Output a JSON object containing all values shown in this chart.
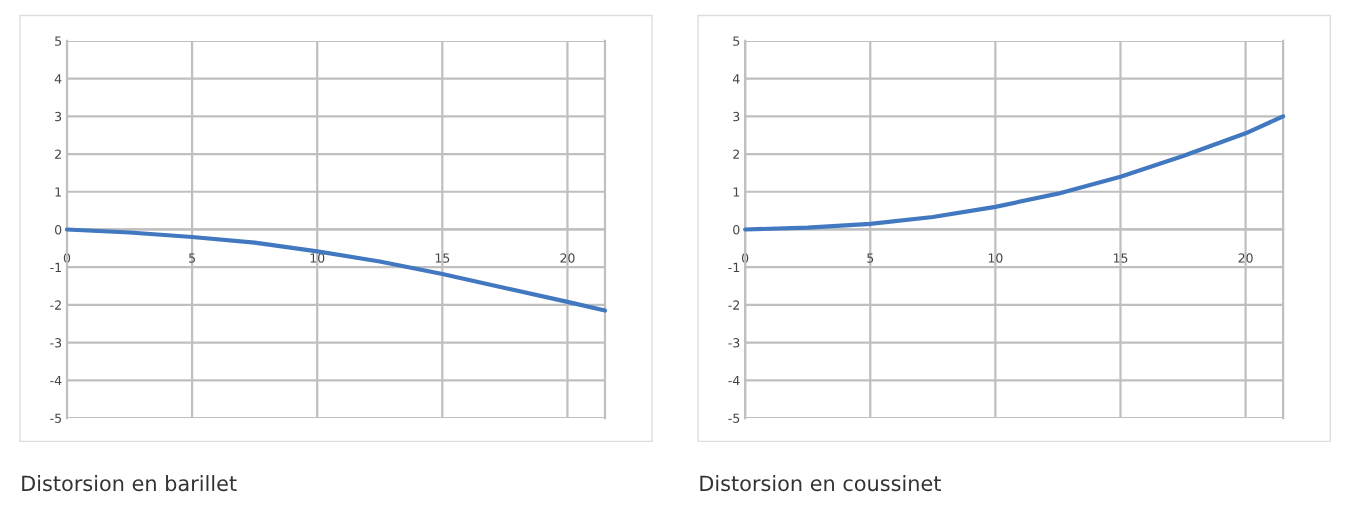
{
  "chart_data": [
    {
      "type": "line",
      "title": "Distorsion en barillet",
      "x": [
        0,
        2.5,
        5,
        7.5,
        10,
        12.5,
        15,
        17.5,
        20,
        21.5
      ],
      "series": [
        {
          "color": "#4178c0",
          "values": [
            0,
            -0.08,
            -0.2,
            -0.35,
            -0.58,
            -0.85,
            -1.18,
            -1.55,
            -1.92,
            -2.15
          ]
        }
      ],
      "xlim": [
        0,
        21.5
      ],
      "xticks": [
        0,
        5,
        10,
        15,
        20
      ],
      "ylim": [
        -5,
        5
      ],
      "yticks": [
        -5,
        -4,
        -3,
        -2,
        -1,
        0,
        1,
        2,
        3,
        4,
        5
      ],
      "grid": true
    },
    {
      "type": "line",
      "title": "Distorsion en coussinet",
      "x": [
        0,
        2.5,
        5,
        7.5,
        10,
        12.5,
        15,
        17.5,
        20,
        21.5
      ],
      "series": [
        {
          "color": "#4178c0",
          "values": [
            0,
            0.05,
            0.15,
            0.33,
            0.6,
            0.95,
            1.4,
            1.95,
            2.55,
            3.0
          ]
        }
      ],
      "xlim": [
        0,
        21.5
      ],
      "xticks": [
        0,
        5,
        10,
        15,
        20
      ],
      "ylim": [
        -5,
        5
      ],
      "yticks": [
        -5,
        -4,
        -3,
        -2,
        -1,
        0,
        1,
        2,
        3,
        4,
        5
      ],
      "grid": true
    }
  ]
}
